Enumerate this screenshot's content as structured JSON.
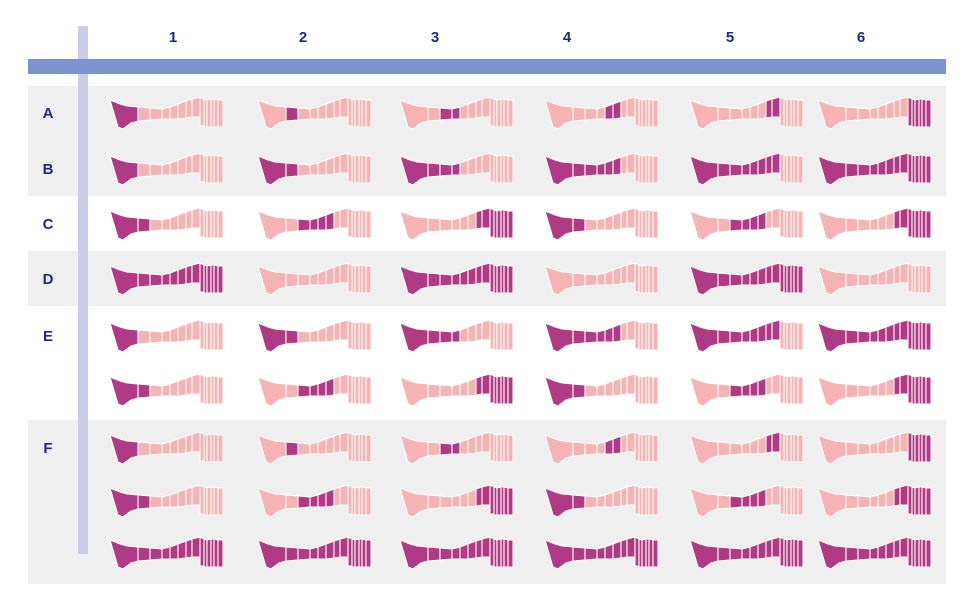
{
  "colors": {
    "light": "#f5b3b3",
    "dark": "#b03a84",
    "header_bar": "#7c93cf",
    "side_bar": "#cbcde6",
    "row_band": "#efefef",
    "label": "#1e2b7a"
  },
  "columns": [
    "1",
    "2",
    "3",
    "4",
    "5",
    "6"
  ],
  "rows": [
    {
      "label": "A",
      "band": true,
      "legs": [
        [
          1,
          0,
          0,
          0,
          0,
          0,
          0,
          0,
          0,
          0,
          0,
          0,
          0,
          0
        ],
        [
          0,
          1,
          0,
          0,
          0,
          0,
          0,
          0,
          0,
          0,
          0,
          0,
          0,
          0
        ],
        [
          0,
          0,
          1,
          1,
          0,
          0,
          0,
          0,
          0,
          0,
          0,
          0,
          0,
          0
        ],
        [
          0,
          0,
          0,
          0,
          1,
          1,
          0,
          0,
          0,
          0,
          0,
          0,
          0,
          0
        ],
        [
          0,
          0,
          0,
          0,
          0,
          0,
          1,
          1,
          0,
          0,
          0,
          0,
          0,
          0
        ],
        [
          0,
          0,
          0,
          0,
          0,
          0,
          0,
          0,
          1,
          1,
          1,
          1,
          1,
          1
        ]
      ]
    },
    {
      "label": "B",
      "band": true,
      "legs": [
        [
          1,
          0,
          0,
          0,
          0,
          0,
          0,
          0,
          0,
          0,
          0,
          0,
          0,
          0
        ],
        [
          1,
          1,
          0,
          0,
          0,
          0,
          0,
          0,
          0,
          0,
          0,
          0,
          0,
          0
        ],
        [
          1,
          1,
          1,
          1,
          0,
          0,
          0,
          0,
          0,
          0,
          0,
          0,
          0,
          0
        ],
        [
          1,
          1,
          1,
          1,
          1,
          1,
          0,
          0,
          0,
          0,
          0,
          0,
          0,
          0
        ],
        [
          1,
          1,
          1,
          1,
          1,
          1,
          1,
          1,
          0,
          0,
          0,
          0,
          0,
          0
        ],
        [
          1,
          1,
          1,
          1,
          1,
          1,
          1,
          1,
          1,
          1,
          1,
          1,
          1,
          1
        ]
      ]
    },
    {
      "label": "C",
      "band": false,
      "legs": [
        [
          1,
          1,
          0,
          0,
          0,
          0,
          0,
          0,
          0,
          0,
          0,
          0,
          0,
          0
        ],
        [
          0,
          0,
          1,
          1,
          1,
          1,
          0,
          0,
          0,
          0,
          0,
          0,
          0,
          0
        ],
        [
          0,
          0,
          0,
          0,
          0,
          0,
          1,
          1,
          1,
          1,
          1,
          1,
          1,
          1
        ],
        [
          1,
          1,
          0,
          0,
          0,
          0,
          0,
          0,
          0,
          0,
          0,
          0,
          0,
          0
        ],
        [
          0,
          0,
          1,
          1,
          1,
          1,
          0,
          0,
          0,
          0,
          0,
          0,
          0,
          0
        ],
        [
          0,
          0,
          0,
          0,
          0,
          0,
          1,
          1,
          1,
          1,
          1,
          1,
          1,
          1
        ]
      ]
    },
    {
      "label": "D",
      "band": true,
      "legs": [
        [
          1,
          1,
          1,
          1,
          1,
          1,
          1,
          1,
          1,
          1,
          1,
          1,
          1,
          1
        ],
        [
          0,
          0,
          0,
          0,
          0,
          0,
          0,
          0,
          0,
          0,
          0,
          0,
          0,
          0
        ],
        [
          1,
          1,
          1,
          1,
          1,
          1,
          1,
          1,
          1,
          1,
          1,
          1,
          1,
          1
        ],
        [
          0,
          0,
          0,
          0,
          0,
          0,
          0,
          0,
          0,
          0,
          0,
          0,
          0,
          0
        ],
        [
          1,
          1,
          1,
          1,
          1,
          1,
          1,
          1,
          1,
          1,
          1,
          1,
          1,
          1
        ],
        [
          0,
          0,
          0,
          0,
          0,
          0,
          0,
          0,
          0,
          0,
          0,
          0,
          0,
          0
        ]
      ]
    },
    {
      "label": "E",
      "band": false,
      "legs": [
        [
          1,
          0,
          0,
          0,
          0,
          0,
          0,
          0,
          0,
          0,
          0,
          0,
          0,
          0
        ],
        [
          1,
          1,
          0,
          0,
          0,
          0,
          0,
          0,
          0,
          0,
          0,
          0,
          0,
          0
        ],
        [
          1,
          1,
          1,
          1,
          0,
          0,
          0,
          0,
          0,
          0,
          0,
          0,
          0,
          0
        ],
        [
          1,
          1,
          1,
          1,
          1,
          1,
          0,
          0,
          0,
          0,
          0,
          0,
          0,
          0
        ],
        [
          1,
          1,
          1,
          1,
          1,
          1,
          1,
          1,
          0,
          0,
          0,
          0,
          0,
          0
        ],
        [
          1,
          1,
          1,
          1,
          1,
          1,
          1,
          1,
          1,
          1,
          1,
          1,
          1,
          1
        ]
      ]
    },
    {
      "label": "",
      "band": false,
      "legs": [
        [
          1,
          1,
          0,
          0,
          0,
          0,
          0,
          0,
          0,
          0,
          0,
          0,
          0,
          0
        ],
        [
          0,
          0,
          1,
          1,
          1,
          1,
          0,
          0,
          0,
          0,
          0,
          0,
          0,
          0
        ],
        [
          0,
          0,
          0,
          0,
          0,
          0,
          1,
          1,
          1,
          1,
          1,
          1,
          1,
          1
        ],
        [
          1,
          1,
          0,
          0,
          0,
          0,
          0,
          0,
          0,
          0,
          0,
          0,
          0,
          0
        ],
        [
          0,
          0,
          1,
          1,
          1,
          1,
          0,
          0,
          0,
          0,
          0,
          0,
          0,
          0
        ],
        [
          0,
          0,
          0,
          0,
          0,
          0,
          1,
          1,
          1,
          1,
          1,
          1,
          1,
          1
        ]
      ]
    },
    {
      "label": "F",
      "band": true,
      "legs": [
        [
          1,
          0,
          0,
          0,
          0,
          0,
          0,
          0,
          0,
          0,
          0,
          0,
          0,
          0
        ],
        [
          0,
          1,
          0,
          0,
          0,
          0,
          0,
          0,
          0,
          0,
          0,
          0,
          0,
          0
        ],
        [
          0,
          0,
          1,
          1,
          0,
          0,
          0,
          0,
          0,
          0,
          0,
          0,
          0,
          0
        ],
        [
          0,
          0,
          0,
          0,
          1,
          1,
          0,
          0,
          0,
          0,
          0,
          0,
          0,
          0
        ],
        [
          0,
          0,
          0,
          0,
          0,
          0,
          1,
          1,
          0,
          0,
          0,
          0,
          0,
          0
        ],
        [
          0,
          0,
          0,
          0,
          0,
          0,
          0,
          0,
          1,
          1,
          1,
          1,
          1,
          1
        ]
      ]
    },
    {
      "label": "",
      "band": true,
      "legs": [
        [
          1,
          1,
          0,
          0,
          0,
          0,
          0,
          0,
          0,
          0,
          0,
          0,
          0,
          0
        ],
        [
          0,
          0,
          1,
          1,
          1,
          1,
          0,
          0,
          0,
          0,
          0,
          0,
          0,
          0
        ],
        [
          0,
          0,
          0,
          0,
          0,
          0,
          1,
          1,
          1,
          1,
          1,
          1,
          1,
          1
        ],
        [
          1,
          1,
          0,
          0,
          0,
          0,
          0,
          0,
          0,
          0,
          0,
          0,
          0,
          0
        ],
        [
          0,
          0,
          1,
          1,
          1,
          1,
          0,
          0,
          0,
          0,
          0,
          0,
          0,
          0
        ],
        [
          0,
          0,
          0,
          0,
          0,
          0,
          1,
          1,
          1,
          1,
          1,
          1,
          1,
          1
        ]
      ]
    },
    {
      "label": "",
      "band": true,
      "legs": [
        [
          1,
          1,
          1,
          1,
          1,
          1,
          1,
          1,
          1,
          1,
          1,
          1,
          1,
          1
        ],
        [
          1,
          1,
          1,
          1,
          1,
          1,
          1,
          1,
          1,
          1,
          1,
          1,
          1,
          1
        ],
        [
          1,
          1,
          1,
          1,
          1,
          1,
          1,
          1,
          1,
          1,
          1,
          1,
          1,
          1
        ],
        [
          1,
          1,
          1,
          1,
          1,
          1,
          1,
          1,
          1,
          1,
          1,
          1,
          1,
          1
        ],
        [
          1,
          1,
          1,
          1,
          1,
          1,
          1,
          1,
          1,
          1,
          1,
          1,
          1,
          1
        ],
        [
          1,
          1,
          1,
          1,
          1,
          1,
          1,
          1,
          1,
          1,
          1,
          1,
          1,
          1
        ]
      ]
    }
  ]
}
